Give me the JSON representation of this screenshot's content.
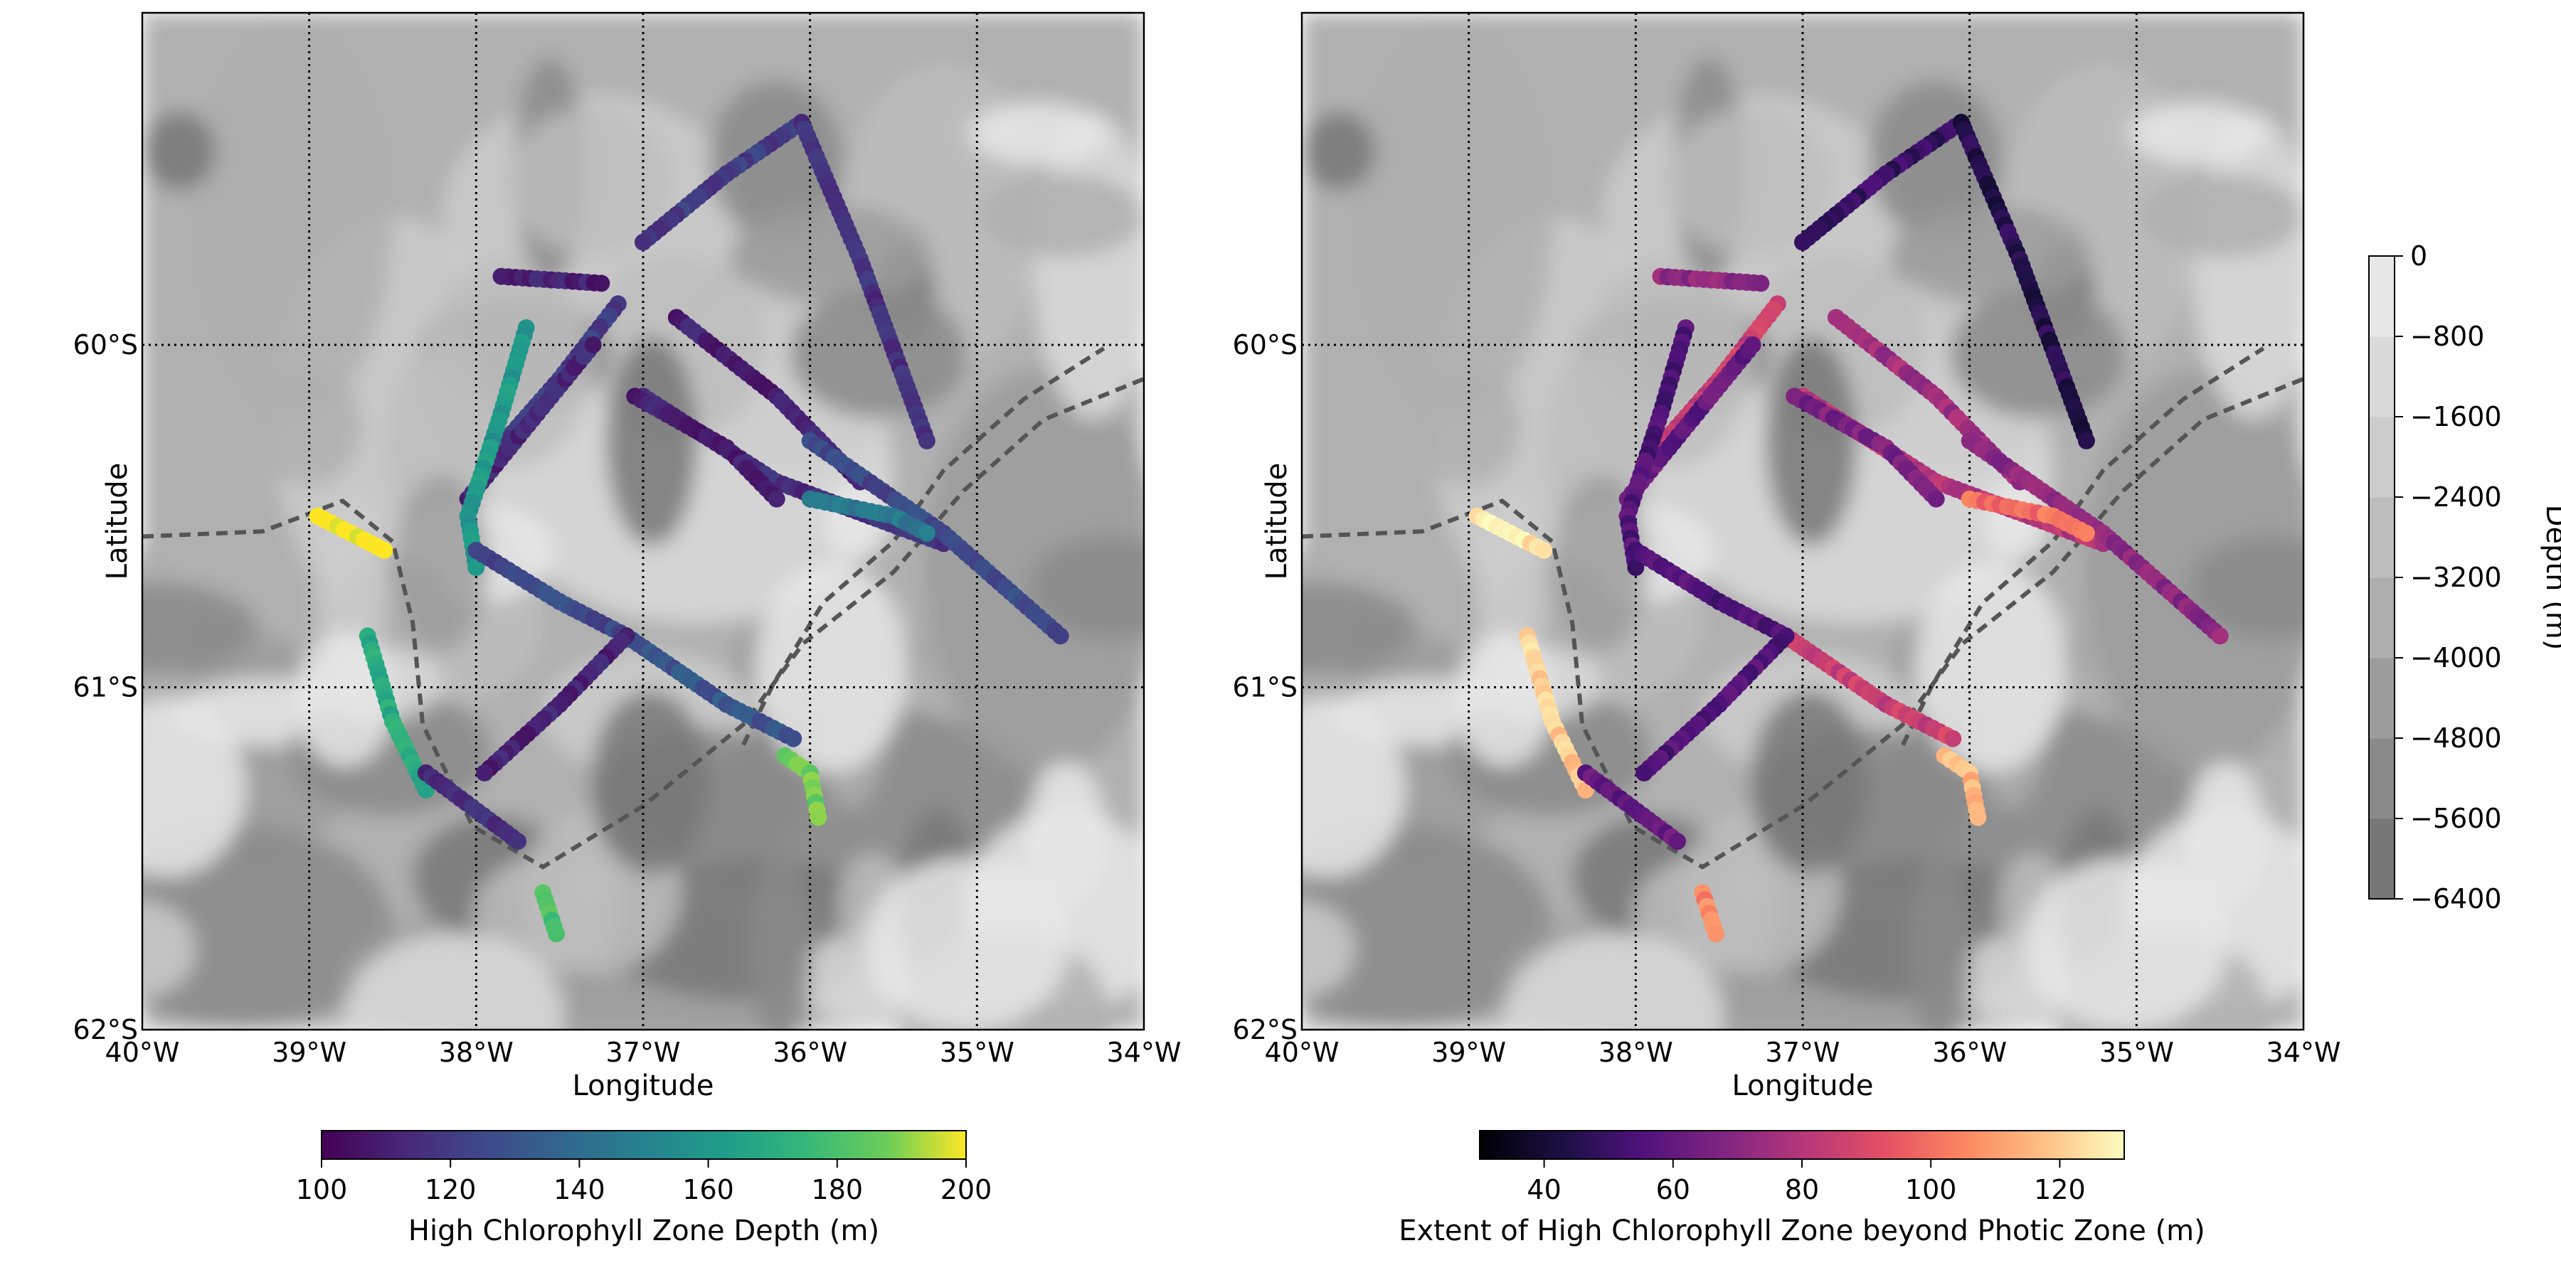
{
  "chart_data": [
    {
      "type": "scatter",
      "xlabel": "Longitude",
      "ylabel": "Latitude",
      "xticks": [
        "40°W",
        "39°W",
        "38°W",
        "37°W",
        "36°W",
        "35°W",
        "34°W"
      ],
      "yticks": [
        "60°S",
        "61°S",
        "62°S"
      ],
      "xlim": [
        -40,
        -34
      ],
      "ylim": [
        -62,
        -59.03
      ],
      "grid": true,
      "colorbar": {
        "label": "High Chlorophyll Zone Depth (m)",
        "ticks": [
          "100",
          "120",
          "140",
          "160",
          "180",
          "200"
        ],
        "range": [
          100,
          200
        ],
        "colormap": "viridis",
        "placement": "bottom"
      },
      "tracks": [
        {
          "lon": [
            -36.05,
            -36.5,
            -37.0
          ],
          "lat": [
            -59.35,
            -59.5,
            -59.7
          ],
          "value": 120
        },
        {
          "lon": [
            -36.05,
            -35.7,
            -35.3
          ],
          "lat": [
            -59.35,
            -59.75,
            -60.28
          ],
          "value": 115
        },
        {
          "lon": [
            -37.85,
            -37.25
          ],
          "lat": [
            -59.8,
            -59.82
          ],
          "value": 110
        },
        {
          "lon": [
            -37.15,
            -37.5,
            -37.95
          ],
          "lat": [
            -59.88,
            -60.1,
            -60.35
          ],
          "value": 120
        },
        {
          "lon": [
            -38.05,
            -37.8,
            -37.3
          ],
          "lat": [
            -60.45,
            -60.3,
            -60.0
          ],
          "value": 112
        },
        {
          "lon": [
            -36.8,
            -36.2,
            -35.7
          ],
          "lat": [
            -59.92,
            -60.15,
            -60.4
          ],
          "value": 110
        },
        {
          "lon": [
            -37.0,
            -36.2,
            -35.2
          ],
          "lat": [
            -60.15,
            -60.4,
            -60.58
          ],
          "value": 115
        },
        {
          "lon": [
            -36.0,
            -35.2,
            -34.5
          ],
          "lat": [
            -60.28,
            -60.55,
            -60.85
          ],
          "value": 125
        },
        {
          "lon": [
            -37.05,
            -36.5,
            -36.2
          ],
          "lat": [
            -60.15,
            -60.3,
            -60.45
          ],
          "value": 110
        },
        {
          "lon": [
            -36.0,
            -35.5,
            -35.3
          ],
          "lat": [
            -60.45,
            -60.5,
            -60.55
          ],
          "value": 145
        },
        {
          "lon": [
            -38.95,
            -38.55
          ],
          "lat": [
            -60.5,
            -60.6
          ],
          "value": 200
        },
        {
          "lon": [
            -37.7,
            -37.85,
            -38.05,
            -38.0
          ],
          "lat": [
            -59.95,
            -60.2,
            -60.5,
            -60.65
          ],
          "value": 160
        },
        {
          "lon": [
            -38.0,
            -37.5,
            -37.1
          ],
          "lat": [
            -60.6,
            -60.75,
            -60.85
          ],
          "value": 125
        },
        {
          "lon": [
            -37.1,
            -36.5,
            -36.1
          ],
          "lat": [
            -60.85,
            -61.05,
            -61.15
          ],
          "value": 130
        },
        {
          "lon": [
            -37.1,
            -37.5,
            -37.95
          ],
          "lat": [
            -60.85,
            -61.05,
            -61.25
          ],
          "value": 110
        },
        {
          "lon": [
            -38.65,
            -38.5,
            -38.3
          ],
          "lat": [
            -60.85,
            -61.1,
            -61.3
          ],
          "value": 170
        },
        {
          "lon": [
            -38.3,
            -37.75
          ],
          "lat": [
            -61.25,
            -61.45
          ],
          "value": 115
        },
        {
          "lon": [
            -36.15,
            -36.0,
            -35.95
          ],
          "lat": [
            -61.2,
            -61.25,
            -61.38
          ],
          "value": 185
        },
        {
          "lon": [
            -37.6,
            -37.52
          ],
          "lat": [
            -61.6,
            -61.72
          ],
          "value": 180
        }
      ]
    },
    {
      "type": "scatter",
      "xlabel": "Longitude",
      "ylabel": "Latitude",
      "xticks": [
        "40°W",
        "39°W",
        "38°W",
        "37°W",
        "36°W",
        "35°W",
        "34°W"
      ],
      "yticks": [
        "60°S",
        "61°S",
        "62°S"
      ],
      "xlim": [
        -40,
        -34
      ],
      "ylim": [
        -62,
        -59.03
      ],
      "grid": true,
      "colorbar": {
        "label": "Extent of High Chlorophyll Zone beyond Photic Zone (m)",
        "ticks": [
          "40",
          "60",
          "80",
          "100",
          "120"
        ],
        "range": [
          30,
          130
        ],
        "colormap": "magma",
        "placement": "bottom"
      },
      "tracks": [
        {
          "lon": [
            -36.05,
            -36.5,
            -37.0
          ],
          "lat": [
            -59.35,
            -59.5,
            -59.7
          ],
          "value": 50
        },
        {
          "lon": [
            -36.05,
            -35.7,
            -35.3
          ],
          "lat": [
            -59.35,
            -59.75,
            -60.28
          ],
          "value": 45
        },
        {
          "lon": [
            -37.85,
            -37.25
          ],
          "lat": [
            -59.8,
            -59.82
          ],
          "value": 70
        },
        {
          "lon": [
            -37.15,
            -37.5,
            -37.95
          ],
          "lat": [
            -59.88,
            -60.1,
            -60.35
          ],
          "value": 85
        },
        {
          "lon": [
            -38.05,
            -37.8,
            -37.3
          ],
          "lat": [
            -60.45,
            -60.3,
            -60.0
          ],
          "value": 60
        },
        {
          "lon": [
            -36.8,
            -36.2,
            -35.7
          ],
          "lat": [
            -59.92,
            -60.15,
            -60.4
          ],
          "value": 75
        },
        {
          "lon": [
            -37.0,
            -36.2,
            -35.2
          ],
          "lat": [
            -60.15,
            -60.4,
            -60.58
          ],
          "value": 80
        },
        {
          "lon": [
            -36.0,
            -35.2,
            -34.5
          ],
          "lat": [
            -60.28,
            -60.55,
            -60.85
          ],
          "value": 70
        },
        {
          "lon": [
            -37.05,
            -36.5,
            -36.2
          ],
          "lat": [
            -60.15,
            -60.3,
            -60.45
          ],
          "value": 65
        },
        {
          "lon": [
            -36.0,
            -35.5,
            -35.3
          ],
          "lat": [
            -60.45,
            -60.5,
            -60.55
          ],
          "value": 100
        },
        {
          "lon": [
            -38.95,
            -38.55
          ],
          "lat": [
            -60.5,
            -60.6
          ],
          "value": 125
        },
        {
          "lon": [
            -37.7,
            -37.85,
            -38.05,
            -38.0
          ],
          "lat": [
            -59.95,
            -60.2,
            -60.5,
            -60.65
          ],
          "value": 55
        },
        {
          "lon": [
            -38.0,
            -37.5,
            -37.1
          ],
          "lat": [
            -60.6,
            -60.75,
            -60.85
          ],
          "value": 55
        },
        {
          "lon": [
            -37.1,
            -36.5,
            -36.1
          ],
          "lat": [
            -60.85,
            -61.05,
            -61.15
          ],
          "value": 85
        },
        {
          "lon": [
            -37.1,
            -37.5,
            -37.95
          ],
          "lat": [
            -60.85,
            -61.05,
            -61.25
          ],
          "value": 55
        },
        {
          "lon": [
            -38.65,
            -38.5,
            -38.3
          ],
          "lat": [
            -60.85,
            -61.1,
            -61.3
          ],
          "value": 120
        },
        {
          "lon": [
            -38.3,
            -37.75
          ],
          "lat": [
            -61.25,
            -61.45
          ],
          "value": 60
        },
        {
          "lon": [
            -36.15,
            -36.0,
            -35.95
          ],
          "lat": [
            -61.2,
            -61.25,
            -61.38
          ],
          "value": 115
        },
        {
          "lon": [
            -37.6,
            -37.52
          ],
          "lat": [
            -61.6,
            -61.72
          ],
          "value": 105
        }
      ]
    }
  ],
  "depth_colorbar": {
    "label": "Depth (m)",
    "ticks": [
      "0",
      "−800",
      "−1600",
      "−2400",
      "−3200",
      "−4000",
      "−4800",
      "−5600",
      "−6400"
    ],
    "range": [
      -6400,
      0
    ],
    "colors": [
      "#777777",
      "#8a8a8a",
      "#9c9c9c",
      "#aeaeae",
      "#bdbdbd",
      "#cccccc",
      "#dadada",
      "#e8e8e8"
    ]
  },
  "colors": {
    "ocean_mid": "#b4b4b4",
    "contour_dash": "#555555",
    "grid": "#000000"
  }
}
